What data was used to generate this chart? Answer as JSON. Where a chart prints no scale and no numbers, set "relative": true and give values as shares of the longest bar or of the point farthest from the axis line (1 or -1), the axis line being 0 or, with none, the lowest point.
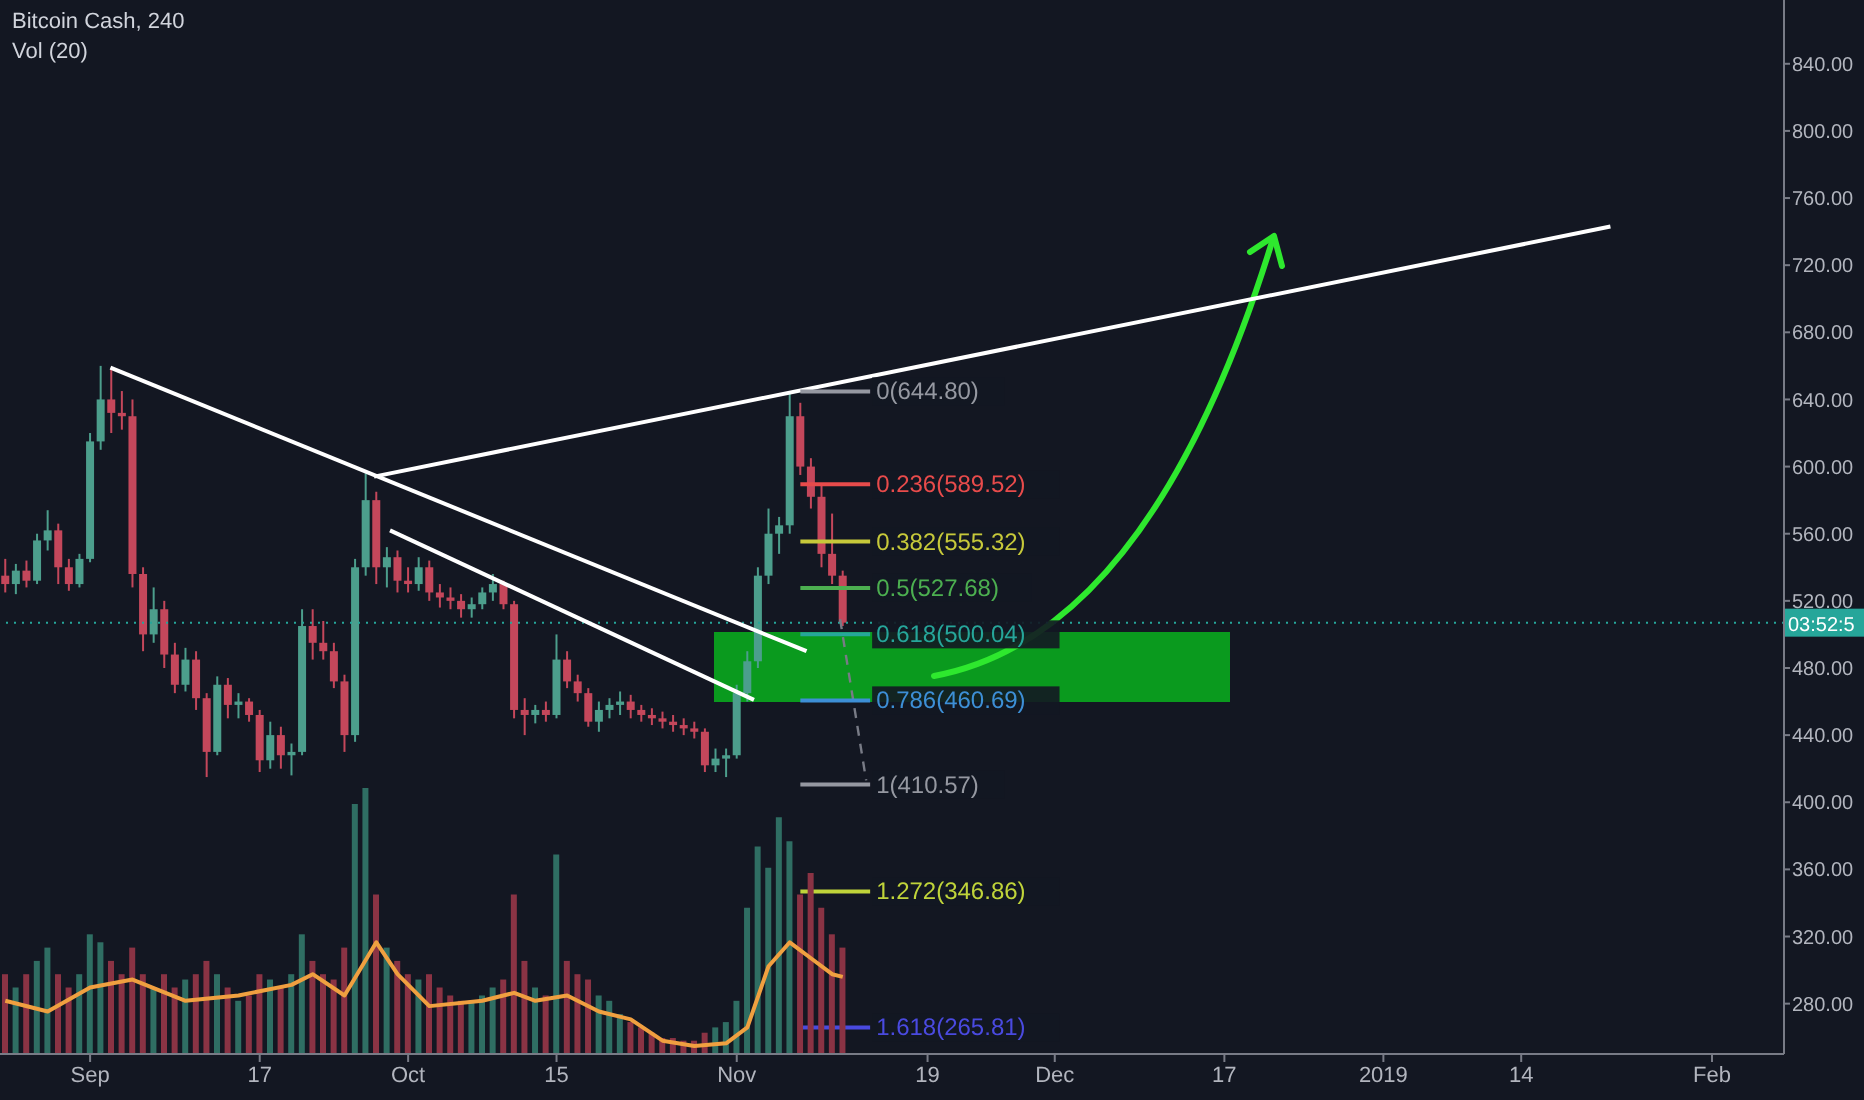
{
  "chart_data": [
    {
      "type": "candlestick",
      "title": "Bitcoin Cash, 240",
      "x": [
        "2018-08-24",
        "2018-08-25",
        "2018-08-26",
        "2018-08-27",
        "2018-08-28",
        "2018-08-29",
        "2018-08-30",
        "2018-08-31",
        "2018-09-01",
        "2018-09-02",
        "2018-09-03",
        "2018-09-04",
        "2018-09-05",
        "2018-09-06",
        "2018-09-07",
        "2018-09-08",
        "2018-09-09",
        "2018-09-10",
        "2018-09-11",
        "2018-09-12",
        "2018-09-13",
        "2018-09-14",
        "2018-09-15",
        "2018-09-16",
        "2018-09-17",
        "2018-09-18",
        "2018-09-19",
        "2018-09-20",
        "2018-09-21",
        "2018-09-22",
        "2018-09-23",
        "2018-09-24",
        "2018-09-25",
        "2018-09-26",
        "2018-09-27",
        "2018-09-28",
        "2018-09-29",
        "2018-09-30",
        "2018-10-01",
        "2018-10-02",
        "2018-10-03",
        "2018-10-04",
        "2018-10-05",
        "2018-10-06",
        "2018-10-07",
        "2018-10-08",
        "2018-10-09",
        "2018-10-10",
        "2018-10-11",
        "2018-10-12",
        "2018-10-13",
        "2018-10-14",
        "2018-10-15",
        "2018-10-16",
        "2018-10-17",
        "2018-10-18",
        "2018-10-19",
        "2018-10-20",
        "2018-10-21",
        "2018-10-22",
        "2018-10-23",
        "2018-10-24",
        "2018-10-25",
        "2018-10-26",
        "2018-10-27",
        "2018-10-28",
        "2018-10-29",
        "2018-10-30",
        "2018-10-31",
        "2018-11-01",
        "2018-11-02",
        "2018-11-03",
        "2018-11-04",
        "2018-11-05",
        "2018-11-06",
        "2018-11-07",
        "2018-11-08",
        "2018-11-09",
        "2018-11-10",
        "2018-11-11"
      ],
      "ohlc": [
        [
          535,
          545,
          525,
          530
        ],
        [
          530,
          542,
          524,
          538
        ],
        [
          538,
          544,
          528,
          532
        ],
        [
          532,
          560,
          530,
          556
        ],
        [
          556,
          574,
          550,
          562
        ],
        [
          562,
          566,
          530,
          540
        ],
        [
          540,
          545,
          526,
          530
        ],
        [
          530,
          548,
          528,
          545
        ],
        [
          545,
          620,
          543,
          615
        ],
        [
          615,
          660,
          610,
          640
        ],
        [
          640,
          658,
          620,
          632
        ],
        [
          632,
          645,
          622,
          630
        ],
        [
          630,
          640,
          528,
          536
        ],
        [
          536,
          540,
          490,
          500
        ],
        [
          500,
          528,
          495,
          515
        ],
        [
          515,
          520,
          480,
          488
        ],
        [
          488,
          495,
          465,
          470
        ],
        [
          470,
          492,
          466,
          485
        ],
        [
          485,
          490,
          455,
          462
        ],
        [
          462,
          465,
          415,
          430
        ],
        [
          430,
          475,
          428,
          470
        ],
        [
          470,
          474,
          450,
          458
        ],
        [
          458,
          465,
          450,
          460
        ],
        [
          460,
          462,
          448,
          452
        ],
        [
          452,
          455,
          418,
          425
        ],
        [
          425,
          448,
          420,
          440
        ],
        [
          440,
          445,
          420,
          428
        ],
        [
          428,
          435,
          416,
          430
        ],
        [
          430,
          515,
          428,
          505
        ],
        [
          505,
          515,
          485,
          495
        ],
        [
          495,
          508,
          485,
          490
        ],
        [
          490,
          495,
          468,
          472
        ],
        [
          472,
          476,
          430,
          440
        ],
        [
          440,
          545,
          436,
          540
        ],
        [
          540,
          596,
          535,
          580
        ],
        [
          580,
          585,
          530,
          540
        ],
        [
          540,
          552,
          528,
          546
        ],
        [
          546,
          550,
          525,
          532
        ],
        [
          532,
          540,
          525,
          530
        ],
        [
          530,
          546,
          526,
          540
        ],
        [
          540,
          544,
          520,
          525
        ],
        [
          525,
          530,
          516,
          522
        ],
        [
          522,
          528,
          515,
          520
        ],
        [
          520,
          524,
          510,
          515
        ],
        [
          515,
          522,
          510,
          518
        ],
        [
          518,
          528,
          515,
          525
        ],
        [
          525,
          536,
          520,
          530
        ],
        [
          530,
          532,
          515,
          518
        ],
        [
          518,
          520,
          450,
          455
        ],
        [
          455,
          462,
          440,
          452
        ],
        [
          452,
          458,
          447,
          455
        ],
        [
          455,
          460,
          448,
          452
        ],
        [
          452,
          500,
          450,
          485
        ],
        [
          485,
          490,
          468,
          472
        ],
        [
          472,
          476,
          460,
          465
        ],
        [
          465,
          468,
          445,
          448
        ],
        [
          448,
          460,
          442,
          455
        ],
        [
          455,
          462,
          450,
          458
        ],
        [
          458,
          466,
          452,
          460
        ],
        [
          460,
          464,
          450,
          455
        ],
        [
          455,
          458,
          448,
          452
        ],
        [
          452,
          456,
          446,
          450
        ],
        [
          450,
          454,
          444,
          448
        ],
        [
          448,
          452,
          442,
          446
        ],
        [
          446,
          450,
          440,
          444
        ],
        [
          444,
          448,
          438,
          442
        ],
        [
          442,
          444,
          418,
          422
        ],
        [
          422,
          432,
          418,
          426
        ],
        [
          426,
          432,
          415,
          428
        ],
        [
          428,
          470,
          426,
          465
        ],
        [
          465,
          490,
          460,
          484
        ],
        [
          484,
          540,
          480,
          535
        ],
        [
          535,
          575,
          530,
          560
        ],
        [
          560,
          570,
          548,
          565
        ],
        [
          565,
          644.8,
          560,
          630
        ],
        [
          630,
          638,
          595,
          600
        ],
        [
          600,
          605,
          575,
          582
        ],
        [
          582,
          590,
          540,
          548
        ],
        [
          548,
          572,
          530,
          535
        ],
        [
          535,
          538,
          505,
          507
        ]
      ],
      "colors": [
        "#c4475b",
        "#4c9e8c",
        "#c4475b",
        "#4c9e8c",
        "#4c9e8c",
        "#c4475b",
        "#c4475b",
        "#4c9e8c",
        "#4c9e8c",
        "#4c9e8c",
        "#c4475b",
        "#c4475b",
        "#c4475b",
        "#c4475b",
        "#4c9e8c",
        "#c4475b",
        "#c4475b",
        "#4c9e8c",
        "#c4475b",
        "#c4475b",
        "#4c9e8c",
        "#c4475b",
        "#4c9e8c",
        "#c4475b",
        "#c4475b",
        "#4c9e8c",
        "#c4475b",
        "#4c9e8c",
        "#4c9e8c",
        "#c4475b",
        "#c4475b",
        "#c4475b",
        "#c4475b",
        "#4c9e8c",
        "#4c9e8c",
        "#c4475b",
        "#4c9e8c",
        "#c4475b",
        "#c4475b",
        "#4c9e8c",
        "#c4475b",
        "#c4475b",
        "#c4475b",
        "#c4475b",
        "#4c9e8c",
        "#4c9e8c",
        "#4c9e8c",
        "#c4475b",
        "#c4475b",
        "#c4475b",
        "#4c9e8c",
        "#c4475b",
        "#4c9e8c",
        "#c4475b",
        "#c4475b",
        "#c4475b",
        "#4c9e8c",
        "#4c9e8c",
        "#4c9e8c",
        "#c4475b",
        "#c4475b",
        "#c4475b",
        "#c4475b",
        "#c4475b",
        "#c4475b",
        "#c4475b",
        "#c4475b",
        "#4c9e8c",
        "#4c9e8c",
        "#4c9e8c",
        "#4c9e8c",
        "#4c9e8c",
        "#4c9e8c",
        "#4c9e8c",
        "#4c9e8c",
        "#c4475b",
        "#c4475b",
        "#c4475b",
        "#c4475b",
        "#c4475b"
      ],
      "series": [
        {
          "type": "line",
          "color": "#ffffff",
          "x": [
            "2018-09-02T22:00",
            "2018-11-07T14:00"
          ],
          "values": [
            659,
            490
          ]
        },
        {
          "type": "line",
          "color": "#ffffff",
          "x": [
            "2018-09-27T19:00",
            "2019-01-22T10:00"
          ],
          "values": [
            594,
            743
          ]
        },
        {
          "type": "line",
          "color": "#ffffff",
          "x": [
            "2018-09-29T07:00",
            "2018-11-02T15:00"
          ],
          "values": [
            562,
            461
          ]
        },
        {
          "type": "line",
          "color": "#787b86",
          "line_style": "dashed",
          "x": [
            "2018-11-10T18:00",
            "2018-11-13T05:00"
          ],
          "values": [
            509,
            413
          ]
        },
        {
          "type": "line",
          "color": "#9598a1",
          "x": [
            "2018-11-07",
            "2018-11-13T14:00"
          ],
          "values": [
            644.8,
            644.8
          ]
        },
        {
          "type": "line",
          "color": "#e84b4b",
          "x": [
            "2018-11-07",
            "2018-11-13T14:00"
          ],
          "values": [
            589.52,
            589.52
          ]
        },
        {
          "type": "line",
          "color": "#c7c93a",
          "x": [
            "2018-11-07",
            "2018-11-13T14:00"
          ],
          "values": [
            555.32,
            555.32
          ]
        },
        {
          "type": "line",
          "color": "#4caf50",
          "x": [
            "2018-11-07",
            "2018-11-13T14:00"
          ],
          "values": [
            527.68,
            527.68
          ]
        },
        {
          "type": "line",
          "color": "#26a69a",
          "x": [
            "2018-11-07",
            "2018-11-13T14:00"
          ],
          "values": [
            500.04,
            500.04
          ]
        },
        {
          "type": "line",
          "color": "#3d8fd6",
          "x": [
            "2018-11-07",
            "2018-11-13T14:00"
          ],
          "values": [
            460.69,
            460.69
          ]
        },
        {
          "type": "line",
          "color": "#9598a1",
          "x": [
            "2018-11-07",
            "2018-11-13T14:00"
          ],
          "values": [
            410.57,
            410.57
          ]
        },
        {
          "type": "line",
          "color": "#c0d43a",
          "x": [
            "2018-11-07",
            "2018-11-13T14:00"
          ],
          "values": [
            346.86,
            346.86
          ]
        },
        {
          "type": "line",
          "color": "#4a4ae0",
          "x": [
            "2018-11-07",
            "2018-11-13T14:00"
          ],
          "values": [
            265.81,
            265.81
          ]
        }
      ],
      "xlim": [
        "2018-08-23T12:00",
        "2019-02-07T19:00"
      ],
      "xticks": [
        {
          "value": "2018-09-01",
          "label": "Sep"
        },
        {
          "value": "2018-09-17",
          "label": "17"
        },
        {
          "value": "2018-10-01",
          "label": "Oct"
        },
        {
          "value": "2018-10-15",
          "label": "15"
        },
        {
          "value": "2018-11-01",
          "label": "Nov"
        },
        {
          "value": "2018-11-19",
          "label": "19"
        },
        {
          "value": "2018-12-01",
          "label": "Dec"
        },
        {
          "value": "2018-12-17",
          "label": "17"
        },
        {
          "value": "2019-01-01",
          "label": "2019"
        },
        {
          "value": "2019-01-14",
          "label": "14"
        },
        {
          "value": "2019-02-01",
          "label": "Feb"
        }
      ],
      "ylim": [
        250,
        878
      ],
      "yticks": [
        {
          "value": 280,
          "label": "280.00"
        },
        {
          "value": 320,
          "label": "320.00"
        },
        {
          "value": 360,
          "label": "360.00"
        },
        {
          "value": 400,
          "label": "400.00"
        },
        {
          "value": 440,
          "label": "440.00"
        },
        {
          "value": 480,
          "label": "480.00"
        },
        {
          "value": 520,
          "label": "520.00"
        },
        {
          "value": 560,
          "label": "560.00"
        },
        {
          "value": 600,
          "label": "600.00"
        },
        {
          "value": 640,
          "label": "640.00"
        },
        {
          "value": 680,
          "label": "680.00"
        },
        {
          "value": 720,
          "label": "720.00"
        },
        {
          "value": 760,
          "label": "760.00"
        },
        {
          "value": 800,
          "label": "800.00"
        },
        {
          "value": 840,
          "label": "840.00"
        }
      ],
      "ref_lines": [
        {
          "axis": "y",
          "value": 507,
          "color": "#26a69a",
          "line_style": "dotted"
        }
      ],
      "annotations": [
        "03:52:5",
        {
          "text": "0(644.80)",
          "x": "2018-11-13T14:00",
          "y": 644.8
        },
        {
          "text": "0.236(589.52)",
          "x": "2018-11-13T14:00",
          "y": 589.52
        },
        {
          "text": "0.382(555.32)",
          "x": "2018-11-13T14:00",
          "y": 555.32
        },
        {
          "text": "0.5(527.68)",
          "x": "2018-11-13T14:00",
          "y": 527.68
        },
        {
          "text": "0.618(500.04)",
          "x": "2018-11-13T14:00",
          "y": 500.04
        },
        {
          "text": "0.786(460.69)",
          "x": "2018-11-13T14:00",
          "y": 460.69
        },
        {
          "text": "1(410.57)",
          "x": "2018-11-13T14:00",
          "y": 410.57
        },
        {
          "text": "1.272(346.86)",
          "x": "2018-11-13T14:00",
          "y": 346.86
        },
        {
          "text": "1.618(265.81)",
          "x": "2018-11-13T14:00",
          "y": 265.81
        }
      ]
    },
    {
      "type": "bar",
      "title": "Vol (20)",
      "relative": true,
      "x": [
        "2018-08-24",
        "2018-08-25",
        "2018-08-26",
        "2018-08-27",
        "2018-08-28",
        "2018-08-29",
        "2018-08-30",
        "2018-08-31",
        "2018-09-01",
        "2018-09-02",
        "2018-09-03",
        "2018-09-04",
        "2018-09-05",
        "2018-09-06",
        "2018-09-07",
        "2018-09-08",
        "2018-09-09",
        "2018-09-10",
        "2018-09-11",
        "2018-09-12",
        "2018-09-13",
        "2018-09-14",
        "2018-09-15",
        "2018-09-16",
        "2018-09-17",
        "2018-09-18",
        "2018-09-19",
        "2018-09-20",
        "2018-09-21",
        "2018-09-22",
        "2018-09-23",
        "2018-09-24",
        "2018-09-25",
        "2018-09-26",
        "2018-09-27",
        "2018-09-28",
        "2018-09-29",
        "2018-09-30",
        "2018-10-01",
        "2018-10-02",
        "2018-10-03",
        "2018-10-04",
        "2018-10-05",
        "2018-10-06",
        "2018-10-07",
        "2018-10-08",
        "2018-10-09",
        "2018-10-10",
        "2018-10-11",
        "2018-10-12",
        "2018-10-13",
        "2018-10-14",
        "2018-10-15",
        "2018-10-16",
        "2018-10-17",
        "2018-10-18",
        "2018-10-19",
        "2018-10-20",
        "2018-10-21",
        "2018-10-22",
        "2018-10-23",
        "2018-10-24",
        "2018-10-25",
        "2018-10-26",
        "2018-10-27",
        "2018-10-28",
        "2018-10-29",
        "2018-10-30",
        "2018-10-31",
        "2018-11-01",
        "2018-11-02",
        "2018-11-03",
        "2018-11-04",
        "2018-11-05",
        "2018-11-06",
        "2018-11-07",
        "2018-11-08",
        "2018-11-09",
        "2018-11-10",
        "2018-11-11"
      ],
      "xlim": [
        "2018-08-23T12:00",
        "2019-02-07T19:00"
      ],
      "series": [
        {
          "type": "bar",
          "values": [
            0.3,
            0.25,
            0.3,
            0.35,
            0.4,
            0.3,
            0.25,
            0.3,
            0.45,
            0.42,
            0.35,
            0.3,
            0.4,
            0.3,
            0.25,
            0.3,
            0.25,
            0.28,
            0.3,
            0.35,
            0.3,
            0.25,
            0.2,
            0.22,
            0.3,
            0.28,
            0.25,
            0.3,
            0.45,
            0.35,
            0.3,
            0.28,
            0.4,
            0.94,
            1,
            0.6,
            0.4,
            0.35,
            0.3,
            0.28,
            0.3,
            0.25,
            0.22,
            0.2,
            0.2,
            0.22,
            0.25,
            0.28,
            0.6,
            0.35,
            0.25,
            0.22,
            0.75,
            0.35,
            0.3,
            0.28,
            0.22,
            0.2,
            0.15,
            0.12,
            0.1,
            0.08,
            0.06,
            0.06,
            0.05,
            0.05,
            0.08,
            0.1,
            0.12,
            0.2,
            0.55,
            0.78,
            0.7,
            0.89,
            0.8,
            0.6,
            0.68,
            0.55,
            0.45,
            0.4
          ],
          "colors": [
            "#8a3344",
            "#2f6e63",
            "#8a3344",
            "#2f6e63",
            "#2f6e63",
            "#8a3344",
            "#8a3344",
            "#2f6e63",
            "#2f6e63",
            "#2f6e63",
            "#8a3344",
            "#8a3344",
            "#8a3344",
            "#8a3344",
            "#2f6e63",
            "#8a3344",
            "#8a3344",
            "#2f6e63",
            "#8a3344",
            "#8a3344",
            "#2f6e63",
            "#8a3344",
            "#2f6e63",
            "#8a3344",
            "#8a3344",
            "#2f6e63",
            "#8a3344",
            "#2f6e63",
            "#2f6e63",
            "#8a3344",
            "#8a3344",
            "#8a3344",
            "#8a3344",
            "#2f6e63",
            "#2f6e63",
            "#8a3344",
            "#2f6e63",
            "#8a3344",
            "#8a3344",
            "#2f6e63",
            "#8a3344",
            "#8a3344",
            "#8a3344",
            "#8a3344",
            "#2f6e63",
            "#2f6e63",
            "#2f6e63",
            "#8a3344",
            "#8a3344",
            "#8a3344",
            "#2f6e63",
            "#8a3344",
            "#2f6e63",
            "#8a3344",
            "#8a3344",
            "#8a3344",
            "#2f6e63",
            "#2f6e63",
            "#2f6e63",
            "#8a3344",
            "#8a3344",
            "#8a3344",
            "#8a3344",
            "#8a3344",
            "#8a3344",
            "#8a3344",
            "#8a3344",
            "#2f6e63",
            "#2f6e63",
            "#2f6e63",
            "#2f6e63",
            "#2f6e63",
            "#2f6e63",
            "#2f6e63",
            "#2f6e63",
            "#8a3344",
            "#8a3344",
            "#8a3344",
            "#8a3344",
            "#8a3344"
          ]
        },
        {
          "type": "line",
          "color": "#f0a040",
          "x": [
            "2018-08-24",
            "2018-08-28",
            "2018-09-01",
            "2018-09-05",
            "2018-09-10",
            "2018-09-15",
            "2018-09-20",
            "2018-09-22",
            "2018-09-25",
            "2018-09-28",
            "2018-09-30",
            "2018-10-03",
            "2018-10-08",
            "2018-10-11",
            "2018-10-13",
            "2018-10-16",
            "2018-10-19",
            "2018-10-22",
            "2018-10-25",
            "2018-10-28",
            "2018-10-31",
            "2018-11-02",
            "2018-11-04",
            "2018-11-06",
            "2018-11-08",
            "2018-11-10",
            "2018-11-11"
          ],
          "values": [
            0.2,
            0.16,
            0.25,
            0.28,
            0.2,
            0.22,
            0.26,
            0.3,
            0.22,
            0.42,
            0.3,
            0.18,
            0.2,
            0.23,
            0.2,
            0.22,
            0.16,
            0.13,
            0.05,
            0.03,
            0.04,
            0.1,
            0.33,
            0.42,
            0.36,
            0.3,
            0.29
          ]
        }
      ]
    }
  ]
}
